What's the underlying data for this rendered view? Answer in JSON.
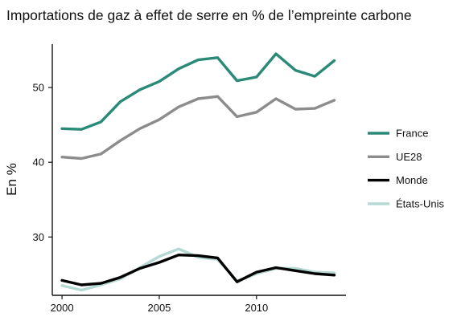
{
  "chart_data": {
    "type": "line",
    "title": "Importations de gaz à effet de serre en % de l’empreinte carbone",
    "xlabel": "",
    "ylabel": "En %",
    "x": [
      2000,
      2001,
      2002,
      2003,
      2004,
      2005,
      2006,
      2007,
      2008,
      2009,
      2010,
      2011,
      2012,
      2013,
      2014
    ],
    "xticks": [
      2000,
      2005,
      2010
    ],
    "yticks": [
      30,
      40,
      50
    ],
    "xlim": [
      1999.5,
      2014.6
    ],
    "ylim": [
      22.2,
      55.8
    ],
    "grid": false,
    "legend_position": "right",
    "series": [
      {
        "name": "France",
        "color": "#2a8a78",
        "values": [
          44.5,
          44.4,
          45.4,
          48.1,
          49.7,
          50.8,
          52.5,
          53.7,
          54.0,
          50.9,
          51.4,
          54.5,
          52.3,
          51.5,
          53.6
        ]
      },
      {
        "name": "UE28",
        "color": "#8c8c8c",
        "values": [
          40.7,
          40.5,
          41.1,
          42.9,
          44.5,
          45.7,
          47.4,
          48.5,
          48.8,
          46.1,
          46.7,
          48.5,
          47.1,
          47.2,
          48.3
        ]
      },
      {
        "name": "Monde",
        "color": "#000000",
        "values": [
          24.2,
          23.6,
          23.8,
          24.6,
          25.8,
          26.6,
          27.6,
          27.5,
          27.2,
          24.0,
          25.3,
          25.9,
          25.5,
          25.1,
          24.9
        ]
      },
      {
        "name": "États-Unis",
        "color": "#b4d8d2",
        "values": [
          23.5,
          22.9,
          23.6,
          24.4,
          25.9,
          27.4,
          28.4,
          27.3,
          27.0,
          24.1,
          25.1,
          25.8,
          25.8,
          25.3,
          25.2
        ]
      }
    ]
  }
}
